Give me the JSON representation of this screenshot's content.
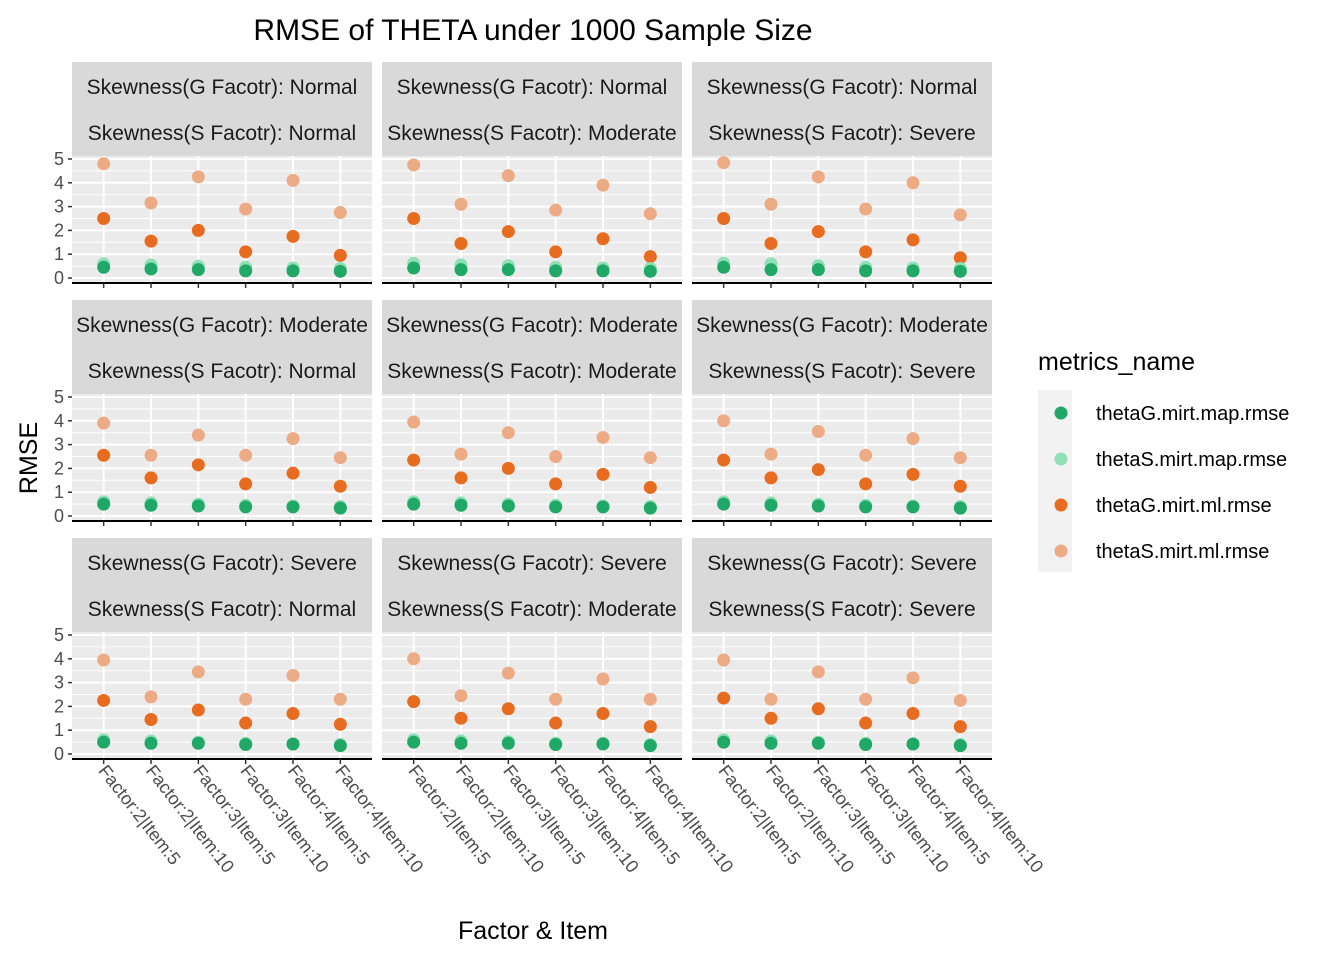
{
  "chart_data": {
    "type": "scatter",
    "title": "RMSE of THETA under 1000 Sample Size",
    "xlabel": "Factor & Item",
    "ylabel": "RMSE",
    "ylim": [
      0,
      5
    ],
    "yticks": [
      0,
      1,
      2,
      3,
      4,
      5
    ],
    "grid": true,
    "legend_position": "right",
    "legend_title": "metrics_name",
    "categories": [
      "Factor:2|Item:5",
      "Factor:2|Item:10",
      "Factor:3|Item:5",
      "Factor:3|Item:10",
      "Factor:4|Item:5",
      "Factor:4|Item:10"
    ],
    "series_meta": [
      {
        "name": "thetaG.mirt.map.rmse",
        "color": "#1fa866"
      },
      {
        "name": "thetaS.mirt.map.rmse",
        "color": "#8fe0b6"
      },
      {
        "name": "thetaG.mirt.ml.rmse",
        "color": "#e86c1f"
      },
      {
        "name": "thetaS.mirt.ml.rmse",
        "color": "#ecab85"
      }
    ],
    "panels": [
      {
        "strip_g": "Skewness(G Facotr): Normal",
        "strip_s": "Skewness(S Facotr): Normal",
        "series": [
          [
            0.45,
            0.38,
            0.35,
            0.3,
            0.3,
            0.28
          ],
          [
            0.6,
            0.55,
            0.5,
            0.45,
            0.42,
            0.4
          ],
          [
            2.5,
            1.55,
            2.0,
            1.1,
            1.75,
            0.95
          ],
          [
            4.8,
            3.15,
            4.25,
            2.9,
            4.1,
            2.75
          ]
        ]
      },
      {
        "strip_g": "Skewness(G Facotr): Normal",
        "strip_s": "Skewness(S Facotr): Moderate",
        "series": [
          [
            0.42,
            0.35,
            0.35,
            0.3,
            0.3,
            0.28
          ],
          [
            0.62,
            0.55,
            0.52,
            0.45,
            0.42,
            0.4
          ],
          [
            2.5,
            1.45,
            1.95,
            1.1,
            1.65,
            0.9
          ],
          [
            4.75,
            3.1,
            4.3,
            2.85,
            3.9,
            2.7
          ]
        ]
      },
      {
        "strip_g": "Skewness(G Facotr): Normal",
        "strip_s": "Skewness(S Facotr): Severe",
        "series": [
          [
            0.45,
            0.35,
            0.35,
            0.3,
            0.3,
            0.28
          ],
          [
            0.62,
            0.6,
            0.52,
            0.45,
            0.42,
            0.4
          ],
          [
            2.5,
            1.45,
            1.95,
            1.1,
            1.6,
            0.85
          ],
          [
            4.85,
            3.1,
            4.25,
            2.9,
            4.0,
            2.65
          ]
        ]
      },
      {
        "strip_g": "Skewness(G Facotr): Moderate",
        "strip_s": "Skewness(S Facotr): Normal",
        "series": [
          [
            0.5,
            0.45,
            0.42,
            0.38,
            0.38,
            0.33
          ],
          [
            0.6,
            0.55,
            0.5,
            0.45,
            0.42,
            0.4
          ],
          [
            2.55,
            1.6,
            2.15,
            1.35,
            1.8,
            1.25
          ],
          [
            3.9,
            2.55,
            3.4,
            2.55,
            3.25,
            2.45
          ]
        ]
      },
      {
        "strip_g": "Skewness(G Facotr): Moderate",
        "strip_s": "Skewness(S Facotr): Moderate",
        "series": [
          [
            0.5,
            0.45,
            0.42,
            0.38,
            0.38,
            0.33
          ],
          [
            0.6,
            0.55,
            0.5,
            0.45,
            0.42,
            0.4
          ],
          [
            2.35,
            1.6,
            2.0,
            1.35,
            1.75,
            1.2
          ],
          [
            3.95,
            2.6,
            3.5,
            2.5,
            3.3,
            2.45
          ]
        ]
      },
      {
        "strip_g": "Skewness(G Facotr): Moderate",
        "strip_s": "Skewness(S Facotr): Severe",
        "series": [
          [
            0.5,
            0.45,
            0.42,
            0.38,
            0.38,
            0.33
          ],
          [
            0.6,
            0.55,
            0.5,
            0.45,
            0.42,
            0.4
          ],
          [
            2.35,
            1.6,
            1.95,
            1.35,
            1.75,
            1.25
          ],
          [
            4.0,
            2.6,
            3.55,
            2.55,
            3.25,
            2.45
          ]
        ]
      },
      {
        "strip_g": "Skewness(G Facotr): Severe",
        "strip_s": "Skewness(S Facotr): Normal",
        "series": [
          [
            0.5,
            0.45,
            0.45,
            0.4,
            0.42,
            0.35
          ],
          [
            0.6,
            0.55,
            0.5,
            0.45,
            0.42,
            0.4
          ],
          [
            2.25,
            1.45,
            1.85,
            1.3,
            1.7,
            1.25
          ],
          [
            3.95,
            2.4,
            3.45,
            2.3,
            3.3,
            2.3
          ]
        ]
      },
      {
        "strip_g": "Skewness(G Facotr): Severe",
        "strip_s": "Skewness(S Facotr): Moderate",
        "series": [
          [
            0.5,
            0.45,
            0.45,
            0.4,
            0.42,
            0.35
          ],
          [
            0.6,
            0.55,
            0.52,
            0.45,
            0.45,
            0.4
          ],
          [
            2.2,
            1.5,
            1.9,
            1.3,
            1.7,
            1.15
          ],
          [
            4.0,
            2.45,
            3.4,
            2.3,
            3.15,
            2.3
          ]
        ]
      },
      {
        "strip_g": "Skewness(G Facotr): Severe",
        "strip_s": "Skewness(S Facotr): Severe",
        "series": [
          [
            0.5,
            0.45,
            0.45,
            0.4,
            0.42,
            0.35
          ],
          [
            0.6,
            0.55,
            0.5,
            0.45,
            0.42,
            0.4
          ],
          [
            2.35,
            1.5,
            1.9,
            1.3,
            1.7,
            1.15
          ],
          [
            3.95,
            2.3,
            3.45,
            2.3,
            3.2,
            2.25
          ]
        ]
      }
    ]
  }
}
